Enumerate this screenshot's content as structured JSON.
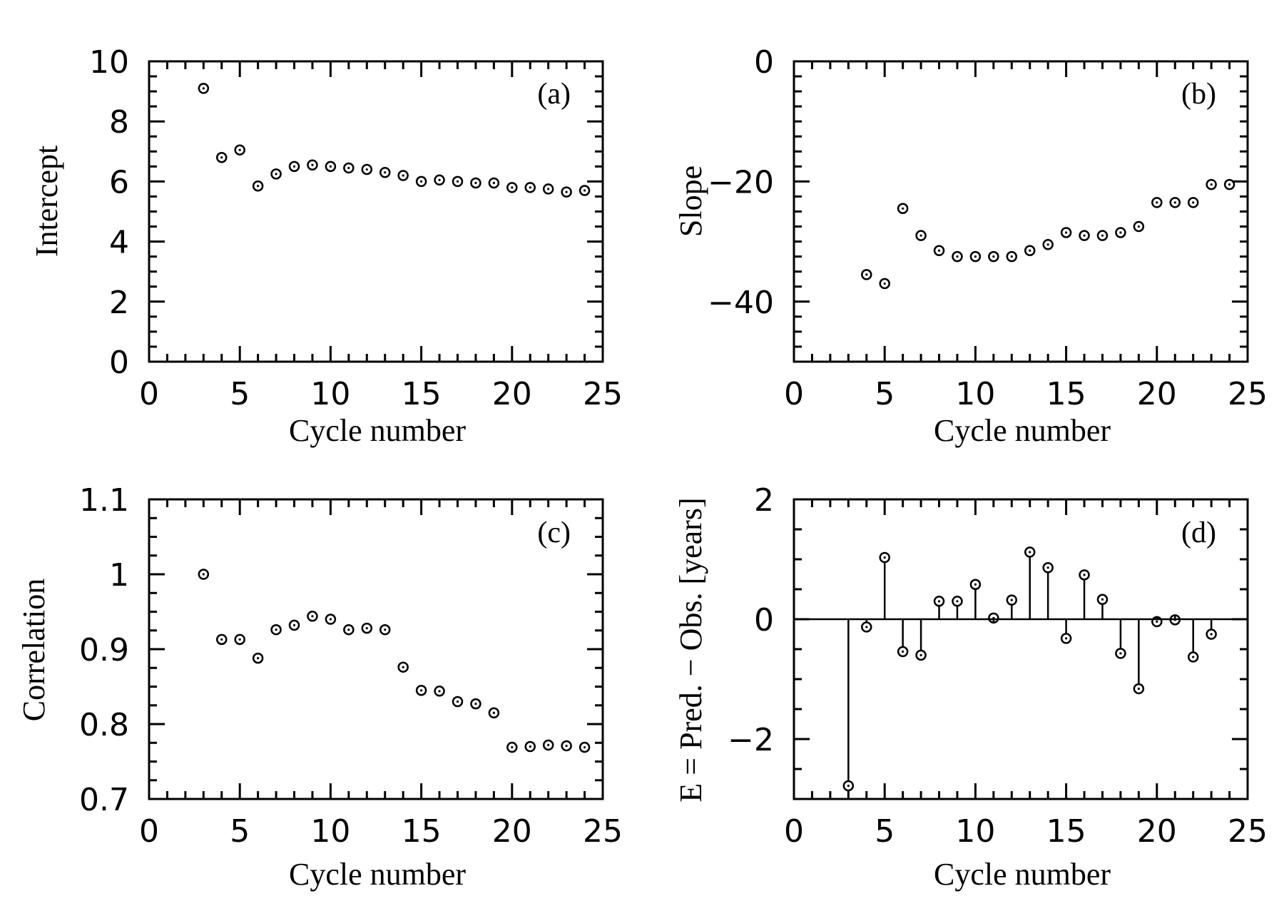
{
  "chart_data": [
    {
      "id": "a",
      "type": "scatter",
      "panel_label": "(a)",
      "xlabel": "Cycle number",
      "ylabel": "Intercept",
      "xlim": [
        0,
        25
      ],
      "ylim": [
        0,
        10
      ],
      "xticks": [
        0,
        5,
        10,
        15,
        20,
        25
      ],
      "yticks": [
        0,
        2,
        4,
        6,
        8,
        10
      ],
      "x_minor": 1,
      "y_minor": 0.5,
      "x": [
        3,
        4,
        5,
        6,
        7,
        8,
        9,
        10,
        11,
        12,
        13,
        14,
        15,
        16,
        17,
        18,
        19,
        20,
        21,
        22,
        23,
        24
      ],
      "y": [
        9.1,
        6.8,
        7.05,
        5.85,
        6.25,
        6.5,
        6.55,
        6.5,
        6.45,
        6.4,
        6.3,
        6.2,
        6.0,
        6.05,
        6.0,
        5.95,
        5.95,
        5.8,
        5.8,
        5.75,
        5.65,
        5.7
      ]
    },
    {
      "id": "b",
      "type": "scatter",
      "panel_label": "(b)",
      "xlabel": "Cycle number",
      "ylabel": "Slope",
      "xlim": [
        0,
        25
      ],
      "ylim": [
        -50,
        0
      ],
      "xticks": [
        0,
        5,
        10,
        15,
        20,
        25
      ],
      "yticks": [
        -40,
        -20,
        0
      ],
      "ytick_labels": [
        "−40",
        "−20",
        "0"
      ],
      "x_minor": 1,
      "y_minor": 2.5,
      "x": [
        4,
        5,
        6,
        7,
        8,
        9,
        10,
        11,
        12,
        13,
        14,
        15,
        16,
        17,
        18,
        19,
        20,
        21,
        22,
        23,
        24
      ],
      "y": [
        -35.5,
        -37,
        -24.5,
        -29,
        -31.5,
        -32.5,
        -32.5,
        -32.5,
        -32.5,
        -31.5,
        -30.5,
        -28.5,
        -29,
        -29,
        -28.5,
        -27.5,
        -23.5,
        -23.5,
        -23.5,
        -20.5,
        -20.5
      ]
    },
    {
      "id": "c",
      "type": "scatter",
      "panel_label": "(c)",
      "xlabel": "Cycle number",
      "ylabel": "Correlation",
      "xlim": [
        0,
        25
      ],
      "ylim": [
        0.7,
        1.1
      ],
      "xticks": [
        0,
        5,
        10,
        15,
        20,
        25
      ],
      "yticks": [
        0.7,
        0.8,
        0.9,
        1,
        1.1
      ],
      "ytick_labels": [
        "0.7",
        "0.8",
        "0.9",
        "1",
        "1.1"
      ],
      "x_minor": 1,
      "y_minor": 0.025,
      "x": [
        3,
        4,
        5,
        6,
        7,
        8,
        9,
        10,
        11,
        12,
        13,
        14,
        15,
        16,
        17,
        18,
        19,
        20,
        21,
        22,
        23,
        24
      ],
      "y": [
        1.0,
        0.913,
        0.913,
        0.888,
        0.926,
        0.932,
        0.944,
        0.94,
        0.926,
        0.928,
        0.926,
        0.876,
        0.845,
        0.844,
        0.83,
        0.827,
        0.815,
        0.769,
        0.77,
        0.772,
        0.771,
        0.769
      ]
    },
    {
      "id": "d",
      "type": "stem",
      "panel_label": "(d)",
      "xlabel": "Cycle number",
      "ylabel": "E = Pred. − Obs. [years]",
      "xlim": [
        0,
        25
      ],
      "ylim": [
        -3,
        2
      ],
      "xticks": [
        0,
        5,
        10,
        15,
        20,
        25
      ],
      "yticks": [
        -2,
        0,
        2
      ],
      "ytick_labels": [
        "−2",
        "0",
        "2"
      ],
      "x_minor": 1,
      "y_minor": 0.5,
      "baseline": 0,
      "x": [
        3,
        4,
        5,
        6,
        7,
        8,
        9,
        10,
        11,
        12,
        13,
        14,
        15,
        16,
        17,
        18,
        19,
        20,
        21,
        22,
        23
      ],
      "y": [
        -2.78,
        -0.13,
        1.03,
        -0.54,
        -0.6,
        0.3,
        0.3,
        0.58,
        0.02,
        0.32,
        1.12,
        0.86,
        -0.32,
        0.74,
        0.33,
        -0.57,
        -1.16,
        -0.04,
        -0.01,
        -0.63,
        -0.25
      ]
    }
  ]
}
